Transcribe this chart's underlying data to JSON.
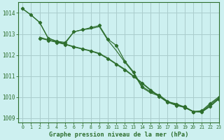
{
  "title": "Graphe pression niveau de la mer (hPa)",
  "background_color": "#cdf0f0",
  "grid_color": "#aacccc",
  "line_color": "#2d6e2d",
  "ylim": [
    1008.8,
    1014.5
  ],
  "xlim": [
    -0.5,
    23
  ],
  "yticks": [
    1009,
    1010,
    1011,
    1012,
    1013,
    1014
  ],
  "xticks": [
    0,
    1,
    2,
    3,
    4,
    5,
    6,
    7,
    8,
    9,
    10,
    11,
    12,
    13,
    14,
    15,
    16,
    17,
    18,
    19,
    20,
    21,
    22,
    23
  ],
  "line1_x": [
    0,
    1,
    2,
    3,
    4,
    5,
    6,
    7,
    8,
    9,
    10,
    11,
    12,
    13,
    14,
    15,
    16,
    17,
    18,
    19,
    20,
    21,
    22,
    23
  ],
  "line1_y": [
    1014.2,
    1013.9,
    1013.55,
    1012.8,
    1012.65,
    1012.6,
    1013.1,
    1013.2,
    1013.3,
    1013.4,
    1012.75,
    1012.45,
    1011.7,
    1011.2,
    1010.5,
    1010.25,
    1010.1,
    1009.8,
    1009.6,
    1009.55,
    1009.3,
    1009.35,
    1009.7,
    1010.0
  ],
  "line2_x": [
    0,
    1,
    2,
    3,
    4,
    5,
    6,
    7,
    8,
    9,
    10,
    11,
    12,
    13,
    14,
    15,
    16,
    17,
    18,
    19,
    20,
    21,
    22,
    23
  ],
  "line2_y": [
    1014.2,
    1013.9,
    1013.55,
    1012.8,
    1012.65,
    1012.55,
    1013.1,
    1013.2,
    1013.25,
    1013.35,
    1012.7,
    1012.2,
    1011.65,
    1011.15,
    1010.45,
    1010.2,
    1010.05,
    1009.75,
    1009.6,
    1009.5,
    1009.3,
    1009.3,
    1009.65,
    1009.95
  ],
  "line3_x": [
    2,
    3,
    4,
    5,
    6,
    7,
    8,
    9,
    10,
    11,
    12,
    13,
    14,
    15,
    16,
    17,
    18,
    19,
    20,
    21,
    22,
    23
  ],
  "line3_y": [
    1012.8,
    1012.7,
    1012.6,
    1012.5,
    1012.38,
    1012.28,
    1012.18,
    1012.05,
    1011.82,
    1011.55,
    1011.28,
    1010.98,
    1010.65,
    1010.32,
    1010.02,
    1009.75,
    1009.65,
    1009.5,
    1009.3,
    1009.28,
    1009.55,
    1009.9
  ],
  "line4_x": [
    2,
    3,
    4,
    5,
    6,
    7,
    8,
    9,
    10,
    11,
    12,
    13,
    14,
    15,
    16,
    17,
    18,
    19,
    20,
    21,
    22,
    23
  ],
  "line4_y": [
    1012.85,
    1012.72,
    1012.62,
    1012.52,
    1012.4,
    1012.3,
    1012.2,
    1012.08,
    1011.85,
    1011.58,
    1011.32,
    1011.0,
    1010.68,
    1010.35,
    1010.05,
    1009.78,
    1009.68,
    1009.52,
    1009.32,
    1009.3,
    1009.58,
    1009.92
  ]
}
